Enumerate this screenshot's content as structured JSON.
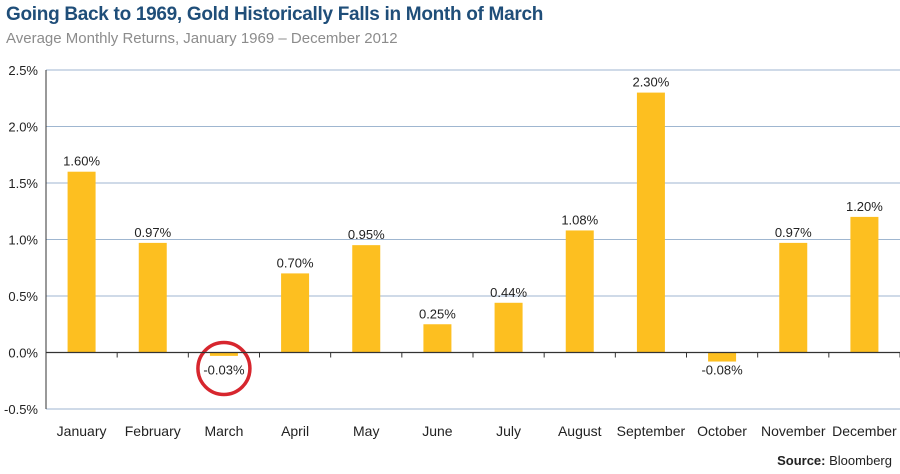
{
  "header": {
    "title": "Going Back to 1969, Gold Historically Falls in Month of March",
    "subtitle": "Average Monthly Returns, January 1969 – December 2012"
  },
  "footer": {
    "source_label": "Source:",
    "source_value": "Bloomberg"
  },
  "colors": {
    "bar": "#FDBF20",
    "highlight_circle": "#D7262E",
    "title": "#1F4E79",
    "axis": "#333333",
    "grid": "#9fb6d0"
  },
  "chart_data": {
    "type": "bar",
    "categories": [
      "January",
      "February",
      "March",
      "April",
      "May",
      "June",
      "July",
      "August",
      "September",
      "October",
      "November",
      "December"
    ],
    "values": [
      1.6,
      0.97,
      -0.03,
      0.7,
      0.95,
      0.25,
      0.44,
      1.08,
      2.3,
      -0.08,
      0.97,
      1.2
    ],
    "data_labels": [
      "1.60%",
      "0.97%",
      "-0.03%",
      "0.70%",
      "0.95%",
      "0.25%",
      "0.44%",
      "1.08%",
      "2.30%",
      "-0.08%",
      "0.97%",
      "1.20%"
    ],
    "yticks": [
      2.5,
      2.0,
      1.5,
      1.0,
      0.5,
      0.0,
      -0.5
    ],
    "ytick_labels": [
      "2.5%",
      "2.0%",
      "1.5%",
      "1.0%",
      "0.5%",
      "0.0%",
      "-0.5%"
    ],
    "ylim": [
      -0.5,
      2.5
    ],
    "grid": true,
    "highlighted_category": "March"
  }
}
